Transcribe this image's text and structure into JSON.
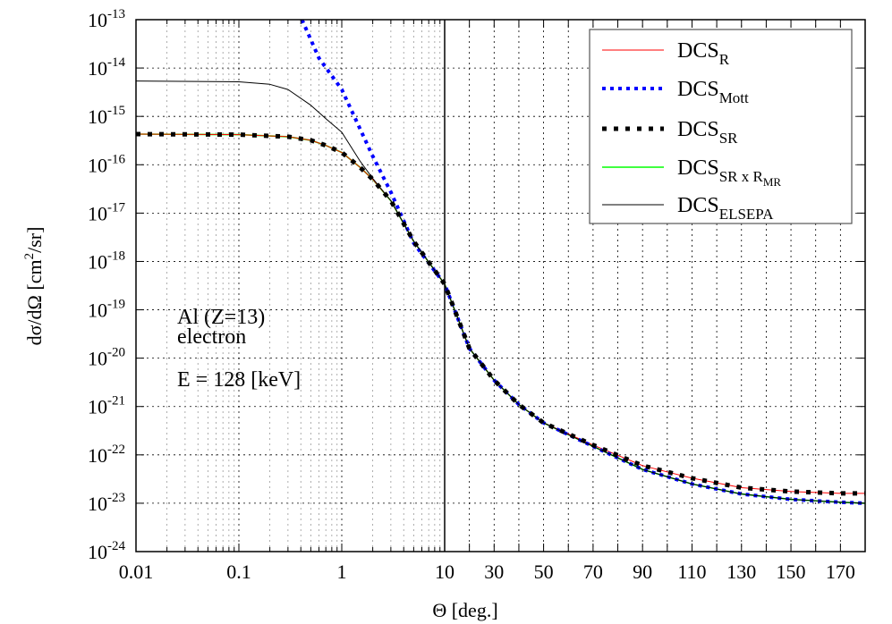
{
  "chart_data": {
    "type": "line",
    "xlabel": "Θ [deg.]",
    "ylabel_main": "dσ/dΩ [cm",
    "ylabel_sup": "2",
    "ylabel_end": "/sr]",
    "x_axis": {
      "segments": [
        {
          "scale": "log",
          "range": [
            0.01,
            10
          ]
        },
        {
          "scale": "linear",
          "range": [
            10,
            180
          ]
        }
      ],
      "tick_labels": [
        "0.01",
        "0.1",
        "1",
        "10",
        "30",
        "50",
        "70",
        "90",
        "110",
        "130",
        "150",
        "170"
      ]
    },
    "y_axis": {
      "scale": "log",
      "range": [
        1e-24,
        1e-13
      ],
      "tick_exponents": [
        "-13",
        "-14",
        "-15",
        "-16",
        "-17",
        "-18",
        "-19",
        "-20",
        "-21",
        "-22",
        "-23",
        "-24"
      ],
      "tick_base": "10"
    },
    "grid": true,
    "legend_placement": "top-right",
    "annotations": [
      "Al (Z=13)",
      "electron",
      "E = 128 [keV]"
    ],
    "series": [
      {
        "name": "DCS",
        "sub": "R",
        "color": "#ff0000",
        "style": "solid-thin",
        "points": [
          [
            0.01,
            4.3e-16
          ],
          [
            0.1,
            4.2e-16
          ],
          [
            0.3,
            3.8e-16
          ],
          [
            0.5,
            3.2e-16
          ],
          [
            0.7,
            2.5e-16
          ],
          [
            1,
            1.8e-16
          ],
          [
            1.5,
            8.9e-17
          ],
          [
            2,
            5e-17
          ],
          [
            3,
            1.8e-17
          ],
          [
            5,
            2.6e-18
          ],
          [
            10,
            3.4e-19
          ],
          [
            20,
            1.6e-20
          ],
          [
            30,
            3.5e-21
          ],
          [
            40,
            1.1e-21
          ],
          [
            50,
            4.6e-22
          ],
          [
            70,
            1.6e-22
          ],
          [
            90,
            6e-23
          ],
          [
            110,
            3.3e-23
          ],
          [
            130,
            2.1e-23
          ],
          [
            150,
            1.75e-23
          ],
          [
            170,
            1.6e-23
          ],
          [
            180,
            1.6e-23
          ]
        ]
      },
      {
        "name": "DCS",
        "sub": "Mott",
        "color": "#0000ff",
        "style": "dotted",
        "points": [
          [
            0.41,
            1e-13
          ],
          [
            0.6,
            1.6e-14
          ],
          [
            1,
            3.6e-15
          ],
          [
            2,
            1.5e-16
          ],
          [
            3,
            2.7e-17
          ],
          [
            5,
            2.4e-18
          ],
          [
            10,
            3.4e-19
          ],
          [
            20,
            1.6e-20
          ],
          [
            30,
            3.5e-21
          ],
          [
            40,
            1.1e-21
          ],
          [
            50,
            4.6e-22
          ],
          [
            70,
            1.5e-22
          ],
          [
            90,
            5e-23
          ],
          [
            110,
            2.5e-23
          ],
          [
            130,
            1.55e-23
          ],
          [
            150,
            1.2e-23
          ],
          [
            170,
            1.05e-23
          ],
          [
            180,
            1e-23
          ]
        ]
      },
      {
        "name": "DCS",
        "sub": "SR",
        "color": "#000000",
        "style": "dotted-thick",
        "points": [
          [
            0.01,
            4.3e-16
          ],
          [
            0.1,
            4.2e-16
          ],
          [
            0.3,
            3.8e-16
          ],
          [
            0.5,
            3.2e-16
          ],
          [
            0.7,
            2.5e-16
          ],
          [
            1,
            1.8e-16
          ],
          [
            1.5,
            8.9e-17
          ],
          [
            2,
            5e-17
          ],
          [
            3,
            1.8e-17
          ],
          [
            5,
            2.6e-18
          ],
          [
            10,
            3.4e-19
          ],
          [
            20,
            1.6e-20
          ],
          [
            30,
            3.5e-21
          ],
          [
            40,
            1.1e-21
          ],
          [
            50,
            4.6e-22
          ],
          [
            70,
            1.6e-22
          ],
          [
            90,
            6e-23
          ],
          [
            110,
            3.3e-23
          ],
          [
            130,
            2.1e-23
          ],
          [
            150,
            1.75e-23
          ],
          [
            170,
            1.6e-23
          ],
          [
            180,
            1.6e-23
          ]
        ]
      },
      {
        "name": "DCS",
        "sub": "SR x R",
        "sub2": "MR",
        "color": "#00ff00",
        "style": "solid",
        "points": [
          [
            0.01,
            4.3e-16
          ],
          [
            0.1,
            4.2e-16
          ],
          [
            0.3,
            3.8e-16
          ],
          [
            0.5,
            3.2e-16
          ],
          [
            0.7,
            2.5e-16
          ],
          [
            1,
            1.8e-16
          ],
          [
            1.5,
            8.9e-17
          ],
          [
            2,
            5e-17
          ],
          [
            3,
            1.8e-17
          ],
          [
            5,
            2.6e-18
          ],
          [
            10,
            3.4e-19
          ],
          [
            20,
            1.6e-20
          ],
          [
            30,
            3.5e-21
          ],
          [
            40,
            1.1e-21
          ],
          [
            50,
            4.6e-22
          ],
          [
            70,
            1.5e-22
          ],
          [
            90,
            5e-23
          ],
          [
            110,
            2.5e-23
          ],
          [
            130,
            1.55e-23
          ],
          [
            150,
            1.2e-23
          ],
          [
            170,
            1.05e-23
          ],
          [
            180,
            1e-23
          ]
        ]
      },
      {
        "name": "DCS",
        "sub": "ELSEPA",
        "color": "#000000",
        "style": "solid-thin",
        "points": [
          [
            0.01,
            5.4e-15
          ],
          [
            0.1,
            5.2e-15
          ],
          [
            0.2,
            4.6e-15
          ],
          [
            0.3,
            3.6e-15
          ],
          [
            0.5,
            1.7e-15
          ],
          [
            0.7,
            9e-16
          ],
          [
            1,
            4.7e-16
          ],
          [
            1.5,
            1.2e-16
          ],
          [
            2,
            5.2e-17
          ],
          [
            3,
            1.8e-17
          ],
          [
            5,
            2.6e-18
          ],
          [
            10,
            3.4e-19
          ],
          [
            20,
            1.6e-20
          ],
          [
            30,
            3.5e-21
          ],
          [
            40,
            1.1e-21
          ],
          [
            50,
            4.6e-22
          ],
          [
            70,
            1.5e-22
          ],
          [
            90,
            5e-23
          ],
          [
            110,
            2.5e-23
          ],
          [
            130,
            1.55e-23
          ],
          [
            150,
            1.2e-23
          ],
          [
            170,
            1.05e-23
          ],
          [
            180,
            1e-23
          ]
        ]
      }
    ]
  }
}
